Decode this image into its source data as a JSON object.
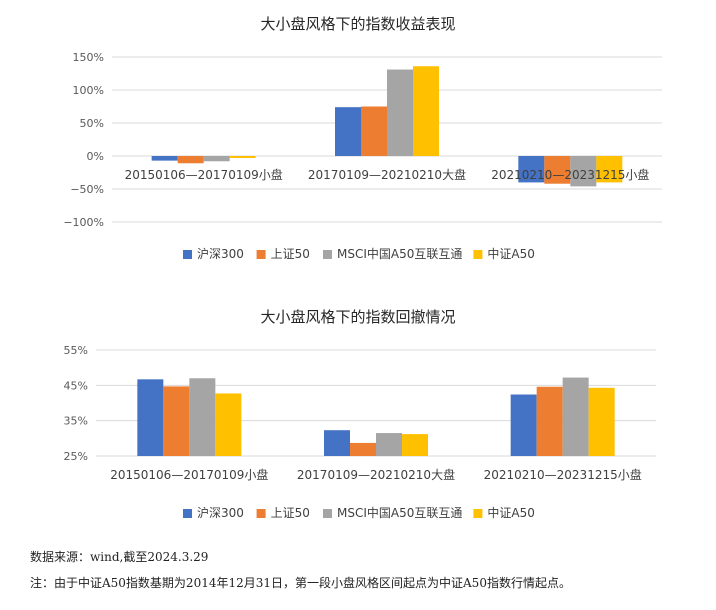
{
  "colors": [
    "#4472C4",
    "#ED7D31",
    "#A5A5A5",
    "#FFC000"
  ],
  "chart_data": [
    {
      "type": "bar",
      "title": "大小盘风格下的指数收益表现",
      "categories": [
        "20150106—20170109小盘",
        "20170109—20210210大盘",
        "20210210—20231215小盘"
      ],
      "series": [
        {
          "name": "沪深300",
          "values": [
            -0.07,
            0.74,
            -0.4
          ]
        },
        {
          "name": "上证50",
          "values": [
            -0.11,
            0.75,
            -0.42
          ]
        },
        {
          "name": "MSCI中国A50互联互通",
          "values": [
            -0.08,
            1.31,
            -0.46
          ]
        },
        {
          "name": "中证A50",
          "values": [
            -0.03,
            1.36,
            -0.4
          ]
        }
      ],
      "ylim": [
        -1.0,
        1.5
      ],
      "yticks": [
        -1.0,
        -0.5,
        0,
        0.5,
        1.0,
        1.5
      ],
      "ytick_labels": [
        "−100%",
        "−50%",
        "0%",
        "50%",
        "100%",
        "150%"
      ],
      "grid": true,
      "legend": "bottom"
    },
    {
      "type": "bar",
      "title": "大小盘风格下的指数回撤情况",
      "categories": [
        "20150106—20170109小盘",
        "20170109—20210210大盘",
        "20210210—20231215小盘"
      ],
      "series": [
        {
          "name": "沪深300",
          "values": [
            0.467,
            0.323,
            0.424
          ]
        },
        {
          "name": "上证50",
          "values": [
            0.447,
            0.287,
            0.446
          ]
        },
        {
          "name": "MSCI中国A50互联互通",
          "values": [
            0.47,
            0.315,
            0.472
          ]
        },
        {
          "name": "中证A50",
          "values": [
            0.427,
            0.312,
            0.443
          ]
        }
      ],
      "ylim": [
        0.25,
        0.55
      ],
      "yticks": [
        0.25,
        0.35,
        0.45,
        0.55
      ],
      "ytick_labels": [
        "25%",
        "35%",
        "45%",
        "55%"
      ],
      "grid": true,
      "legend": "bottom"
    }
  ],
  "footer": {
    "source": "数据来源：wind,截至2024.3.29",
    "note": "注：由于中证A50指数基期为2014年12月31日，第一段小盘风格区间起点为中证A50指数行情起点。"
  }
}
